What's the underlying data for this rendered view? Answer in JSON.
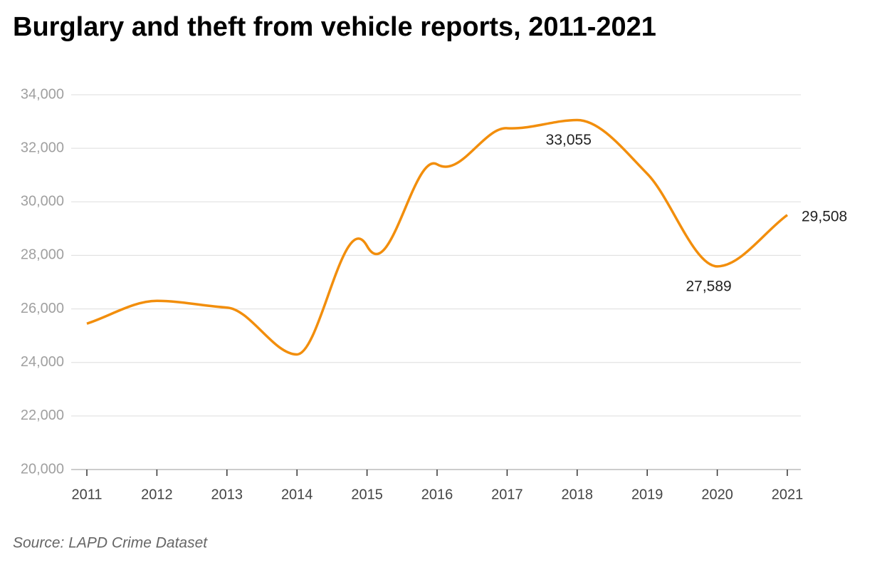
{
  "chart_data": {
    "type": "line",
    "title": "Burglary and theft from vehicle reports, 2011-2021",
    "source": "Source: LAPD Crime Dataset",
    "categories": [
      "2011",
      "2012",
      "2013",
      "2014",
      "2015",
      "2016",
      "2017",
      "2018",
      "2019",
      "2020",
      "2021"
    ],
    "series": [
      {
        "name": "Reports",
        "color": "#f28e0c",
        "values": [
          25450,
          26300,
          26050,
          24300,
          28350,
          31400,
          32750,
          33055,
          31050,
          27589,
          29508
        ],
        "value_labels": [
          null,
          null,
          null,
          null,
          null,
          null,
          null,
          "33,055",
          null,
          "27,589",
          "29,508"
        ]
      }
    ],
    "ylim": [
      20000,
      34000
    ],
    "yticks": [
      {
        "value": 20000,
        "label": "20,000"
      },
      {
        "value": 22000,
        "label": "22,000"
      },
      {
        "value": 24000,
        "label": "24,000"
      },
      {
        "value": 26000,
        "label": "26,000"
      },
      {
        "value": 28000,
        "label": "28,000"
      },
      {
        "value": 30000,
        "label": "30,000"
      },
      {
        "value": 32000,
        "label": "32,000"
      },
      {
        "value": 34000,
        "label": "34,000"
      }
    ],
    "grid": true
  }
}
